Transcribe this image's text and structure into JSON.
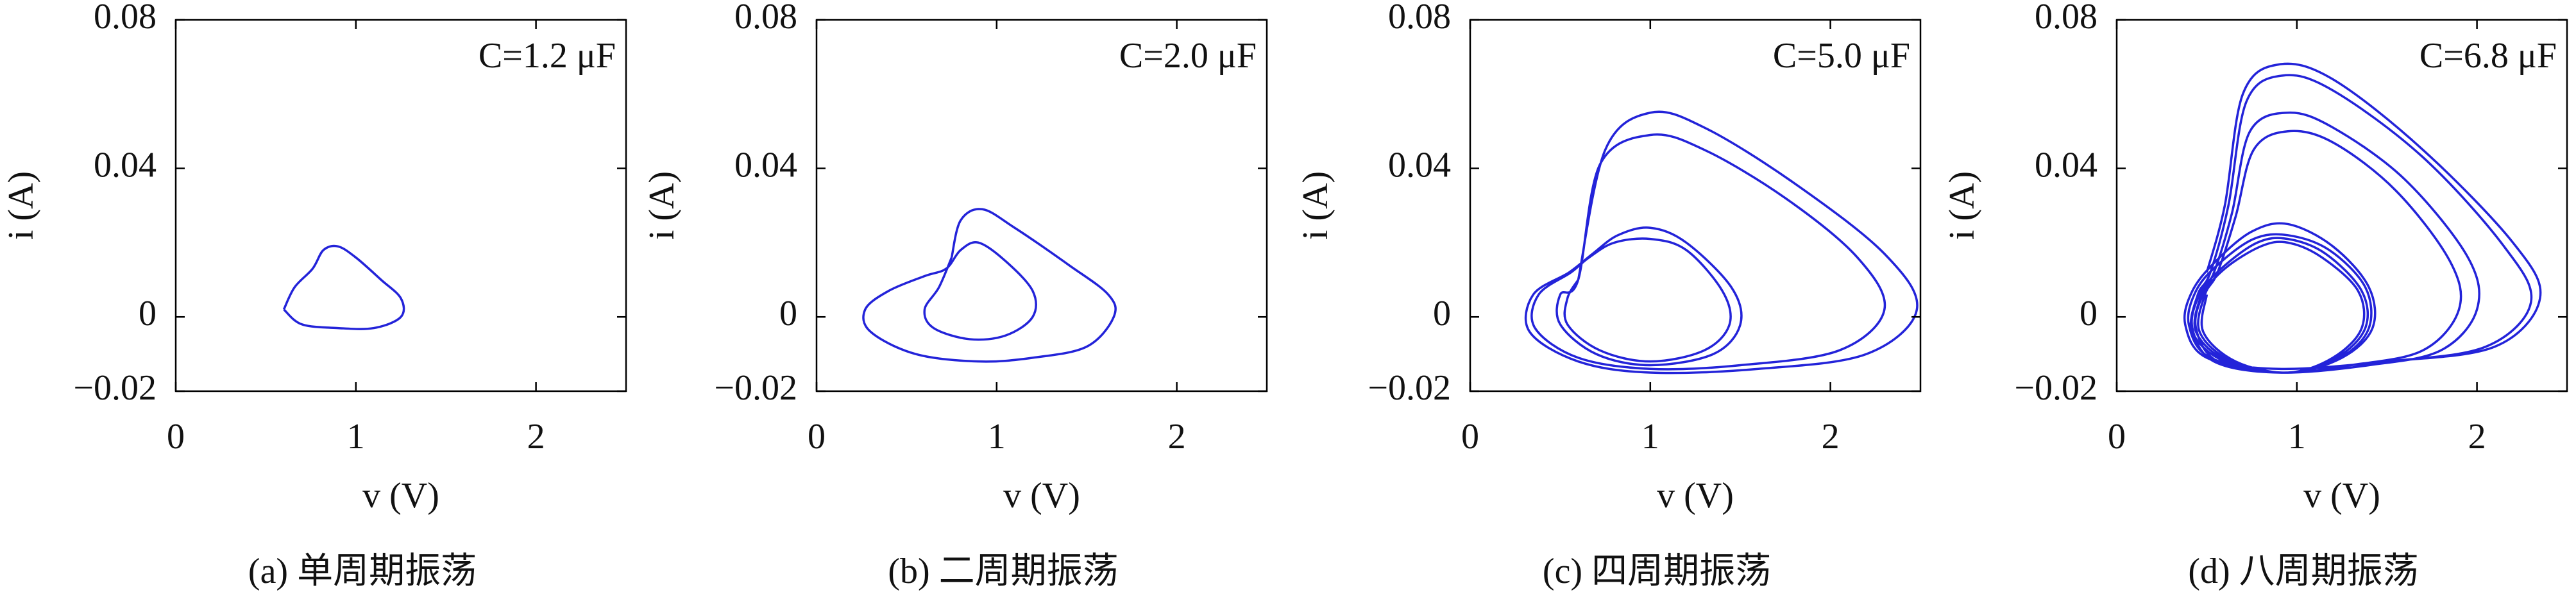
{
  "chart_data": [
    {
      "type": "line",
      "annotation": "C=1.2 μF",
      "caption": "(a) 单周期振荡",
      "x_label": "v (V)",
      "y_label": "i (A)",
      "xlim": [
        0,
        2.5
      ],
      "ylim": [
        -0.02,
        0.08
      ],
      "xticks": [
        0,
        1,
        2
      ],
      "yticks": [
        {
          "value": -0.02,
          "label": "−0.02"
        },
        0,
        0.04,
        0.08
      ],
      "series": [
        {
          "color": "#2323d9",
          "x": [
            0.6,
            0.66,
            0.76,
            0.82,
            0.9,
            1.0,
            1.14,
            1.25,
            1.25,
            1.1,
            0.9,
            0.7,
            0.6
          ],
          "values": [
            0.002,
            0.008,
            0.013,
            0.018,
            0.019,
            0.016,
            0.01,
            0.005,
            0.0,
            -0.003,
            -0.003,
            -0.002,
            0.002
          ]
        }
      ]
    },
    {
      "type": "line",
      "annotation": "C=2.0 μF",
      "caption": "(b) 二周期振荡",
      "x_label": "v (V)",
      "y_label": "i (A)",
      "xlim": [
        0,
        2.5
      ],
      "ylim": [
        -0.02,
        0.08
      ],
      "xticks": [
        0,
        1,
        2
      ],
      "yticks": [
        {
          "value": -0.02,
          "label": "−0.02"
        },
        0,
        0.04,
        0.08
      ],
      "series": [
        {
          "color": "#2323d9",
          "x": [
            0.75,
            0.8,
            0.92,
            1.1,
            1.4,
            1.62,
            1.65,
            1.5,
            1.2,
            0.9,
            0.55,
            0.3,
            0.27,
            0.4,
            0.6,
            0.72,
            0.8,
            0.9,
            1.05,
            1.2,
            1.2,
            1.05,
            0.85,
            0.65,
            0.6,
            0.68,
            0.75
          ],
          "values": [
            0.016,
            0.026,
            0.029,
            0.024,
            0.014,
            0.006,
            0.0,
            -0.008,
            -0.011,
            -0.012,
            -0.01,
            -0.004,
            0.002,
            0.007,
            0.011,
            0.013,
            0.018,
            0.02,
            0.015,
            0.007,
            0.0,
            -0.005,
            -0.006,
            -0.003,
            0.002,
            0.008,
            0.016
          ]
        }
      ]
    },
    {
      "type": "line",
      "annotation": "C=5.0 μF",
      "caption": "(c) 四周期振荡",
      "x_label": "v (V)",
      "y_label": "i (A)",
      "xlim": [
        0,
        2.5
      ],
      "ylim": [
        -0.02,
        0.08
      ],
      "xticks": [
        0,
        1,
        2
      ],
      "yticks": [
        {
          "value": -0.02,
          "label": "−0.02"
        },
        0,
        0.04,
        0.08
      ],
      "series": [
        {
          "color": "#2323d9",
          "x": [
            0.6,
            0.75,
            1.0,
            1.3,
            1.8,
            2.3,
            2.48,
            2.2,
            1.6,
            1.0,
            0.6,
            0.33,
            0.35,
            0.55,
            0.68,
            0.82,
            1.0,
            1.2,
            1.45,
            1.5,
            1.35,
            1.0,
            0.7,
            0.5,
            0.5,
            0.6,
            0.72,
            1.0,
            1.3,
            1.75,
            2.15,
            2.3,
            2.05,
            1.5,
            1.0,
            0.6,
            0.36,
            0.38,
            0.56,
            0.66,
            0.8,
            1.0,
            1.2,
            1.4,
            1.44,
            1.3,
            1.0,
            0.72,
            0.54,
            0.54,
            0.6
          ],
          "values": [
            0.01,
            0.045,
            0.055,
            0.051,
            0.036,
            0.017,
            0.002,
            -0.01,
            -0.014,
            -0.015,
            -0.012,
            -0.004,
            0.006,
            0.012,
            0.017,
            0.022,
            0.024,
            0.02,
            0.008,
            -0.002,
            -0.01,
            -0.013,
            -0.01,
            -0.002,
            0.006,
            0.01,
            0.041,
            0.049,
            0.045,
            0.032,
            0.016,
            0.002,
            -0.009,
            -0.013,
            -0.014,
            -0.011,
            -0.003,
            0.006,
            0.012,
            0.016,
            0.02,
            0.021,
            0.018,
            0.007,
            -0.002,
            -0.009,
            -0.012,
            -0.009,
            -0.002,
            0.005,
            0.01
          ]
        }
      ]
    },
    {
      "type": "line",
      "annotation": "C=6.8 μF",
      "caption": "(d) 八周期振荡",
      "x_label": "v (V)",
      "y_label": "i (A)",
      "xlim": [
        0,
        2.5
      ],
      "ylim": [
        -0.02,
        0.08
      ],
      "xticks": [
        0,
        1,
        2
      ],
      "yticks": [
        {
          "value": -0.02,
          "label": "−0.02"
        },
        0,
        0.04,
        0.08
      ],
      "series": [
        {
          "color": "#2323d9",
          "x": [
            0.5,
            0.6,
            0.7,
            0.9,
            1.2,
            1.7,
            2.2,
            2.35,
            2.1,
            1.5,
            0.9,
            0.5,
            0.38,
            0.42,
            0.55,
            0.75,
            0.95,
            1.2,
            1.4,
            1.42,
            1.25,
            0.95,
            0.6,
            0.42,
            0.45,
            0.52,
            0.62,
            0.72,
            0.92,
            1.2,
            1.7,
            2.15,
            2.3,
            2.05,
            1.5,
            0.9,
            0.52,
            0.4,
            0.44,
            0.56,
            0.76,
            0.95,
            1.18,
            1.38,
            1.4,
            1.24,
            0.95,
            0.62,
            0.44,
            0.47,
            0.54,
            0.64,
            0.74,
            0.95,
            1.2,
            1.6,
            1.95,
            2.0,
            1.8,
            1.4,
            0.9,
            0.54,
            0.42,
            0.46,
            0.58,
            0.78,
            0.95,
            1.16,
            1.36,
            1.38,
            1.22,
            0.95,
            0.64,
            0.46,
            0.49,
            0.56,
            0.66,
            0.76,
            0.95,
            1.2,
            1.55,
            1.85,
            1.9,
            1.7,
            1.3,
            0.9,
            0.56,
            0.44,
            0.48,
            0.6,
            0.8,
            0.95,
            1.14,
            1.34,
            1.36,
            1.2,
            0.95,
            0.66,
            0.48,
            0.5
          ],
          "values": [
            0.012,
            0.03,
            0.06,
            0.068,
            0.064,
            0.045,
            0.02,
            0.005,
            -0.008,
            -0.012,
            -0.014,
            -0.011,
            -0.002,
            0.007,
            0.015,
            0.023,
            0.025,
            0.019,
            0.008,
            -0.003,
            -0.011,
            -0.015,
            -0.012,
            -0.004,
            0.006,
            0.012,
            0.03,
            0.058,
            0.065,
            0.061,
            0.043,
            0.019,
            0.004,
            -0.008,
            -0.012,
            -0.014,
            -0.011,
            -0.002,
            0.007,
            0.014,
            0.021,
            0.022,
            0.018,
            0.008,
            -0.003,
            -0.011,
            -0.015,
            -0.012,
            -0.004,
            0.006,
            0.012,
            0.028,
            0.05,
            0.055,
            0.051,
            0.037,
            0.016,
            0.002,
            -0.009,
            -0.013,
            -0.015,
            -0.012,
            -0.003,
            0.006,
            0.013,
            0.02,
            0.021,
            0.017,
            0.007,
            -0.003,
            -0.011,
            -0.015,
            -0.012,
            -0.004,
            0.006,
            0.012,
            0.027,
            0.045,
            0.05,
            0.047,
            0.034,
            0.015,
            0.002,
            -0.009,
            -0.013,
            -0.015,
            -0.012,
            -0.003,
            0.006,
            0.013,
            0.019,
            0.02,
            0.016,
            0.007,
            -0.003,
            -0.011,
            -0.015,
            -0.012,
            -0.004,
            0.006
          ]
        }
      ]
    }
  ]
}
